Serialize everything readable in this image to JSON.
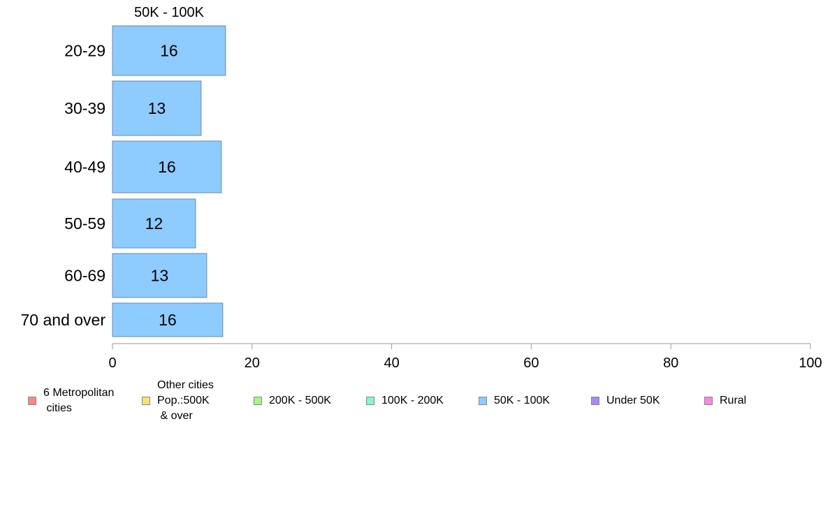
{
  "chart_data": {
    "type": "bar",
    "orientation": "horizontal",
    "title": "50K - 100K",
    "categories": [
      "20-29",
      "30-39",
      "40-49",
      "50-59",
      "60-69",
      "70 and over"
    ],
    "values": [
      16.2,
      12.7,
      15.6,
      11.9,
      13.5,
      15.8
    ],
    "value_labels": [
      "16",
      "13",
      "16",
      "12",
      "13",
      "16"
    ],
    "series": [
      {
        "name": "50K - 100K",
        "values": [
          16.2,
          12.7,
          15.6,
          11.9,
          13.5,
          15.8
        ],
        "color": "#8ecbff"
      }
    ],
    "xlim": [
      0,
      100
    ],
    "xticks": [
      "0",
      "20",
      "40",
      "60",
      "80",
      "100"
    ],
    "xlabel": "",
    "ylabel": "",
    "grid": false,
    "legend_position": "bottom"
  },
  "legend": [
    {
      "label": "6 Metropolitan\n cities",
      "color": "#f48a8a"
    },
    {
      "label": "Other cities\nPop.:500K\n & over",
      "color": "#f5e27a"
    },
    {
      "label": "200K - 500K",
      "color": "#a6f58a"
    },
    {
      "label": "100K - 200K",
      "color": "#8af5c8"
    },
    {
      "label": "50K - 100K",
      "color": "#8ecbff"
    },
    {
      "label": "Under 50K",
      "color": "#a98af5"
    },
    {
      "label": "Rural",
      "color": "#f58ae8"
    }
  ]
}
